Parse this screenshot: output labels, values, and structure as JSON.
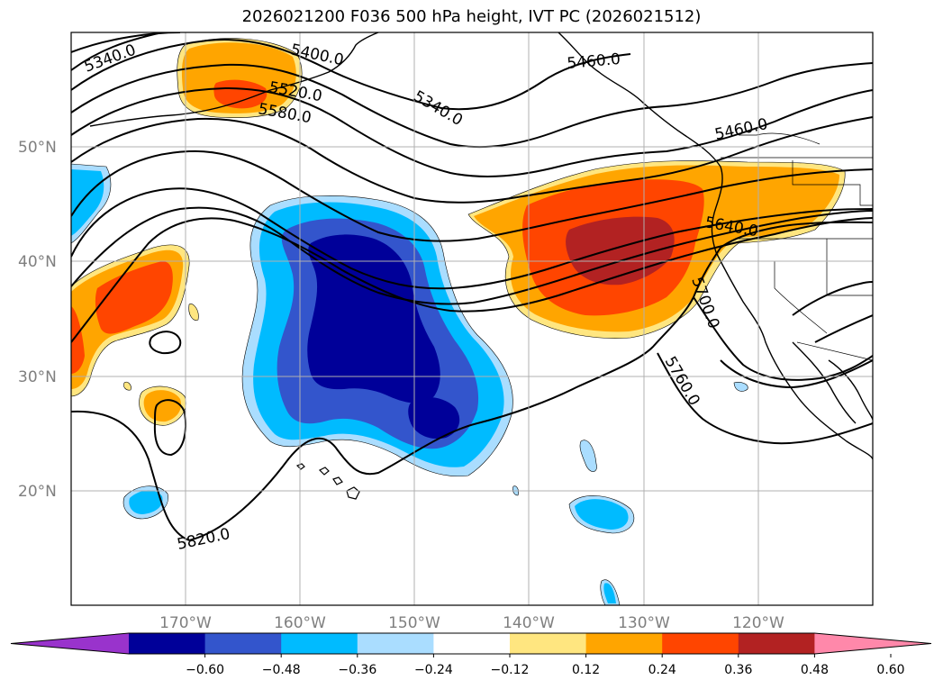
{
  "title": "2026021200 F036 500 hPa height, IVT PC (2026021512)",
  "map": {
    "lat_labels": [
      "50°N",
      "40°N",
      "30°N",
      "20°N"
    ],
    "lon_labels": [
      "170°W",
      "160°W",
      "150°W",
      "140°W",
      "130°W",
      "120°W"
    ],
    "contour_labels": [
      "5340.0",
      "5400.0",
      "5520.0",
      "5580.0",
      "5340.0",
      "5460.0",
      "5460.0",
      "5640.0",
      "5700.0",
      "5760.0",
      "5820.0"
    ]
  },
  "colorbar": {
    "ticks": [
      "−0.60",
      "−0.48",
      "−0.36",
      "−0.24",
      "−0.12",
      "0.12",
      "0.24",
      "0.36",
      "0.48",
      "0.60"
    ],
    "colors": [
      "#9933cc",
      "#000099",
      "#3355cc",
      "#00bbff",
      "#aaddff",
      "#ffffff",
      "#ffe680",
      "#ffa500",
      "#ff4500",
      "#b22222",
      "#ff88aa"
    ]
  }
}
